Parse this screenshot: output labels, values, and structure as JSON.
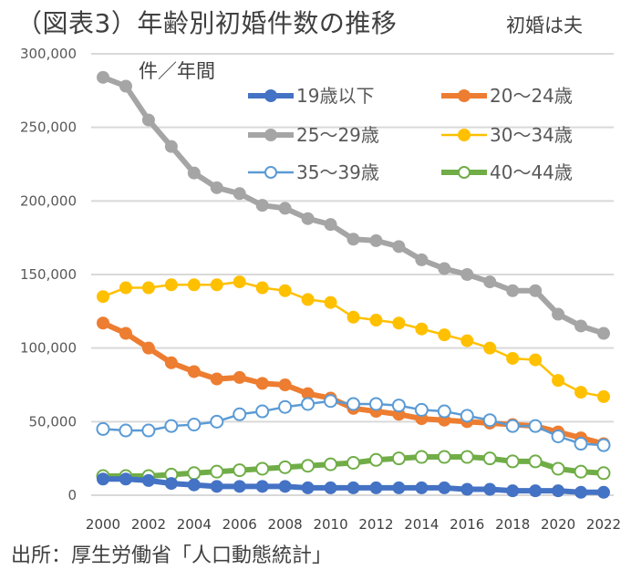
{
  "header": {
    "title": "（図表3）年齢別初婚件数の推移",
    "subtitle": "初婚は夫"
  },
  "footer": {
    "source": "出所：厚生労働省「人口動態統計」"
  },
  "chart_data": {
    "type": "line",
    "title": "（図表3）年齢別初婚件数の推移",
    "subtitle": "初婚は夫",
    "ylabel": "件／年間",
    "xlabel": "",
    "ylim": [
      0,
      300000
    ],
    "yticks": [
      0,
      50000,
      100000,
      150000,
      200000,
      250000,
      300000
    ],
    "ytick_labels": [
      "0",
      "50,000",
      "100,000",
      "150,000",
      "200,000",
      "250,000",
      "300,000"
    ],
    "x": [
      2000,
      2001,
      2002,
      2003,
      2004,
      2005,
      2006,
      2007,
      2008,
      2009,
      2010,
      2011,
      2012,
      2013,
      2014,
      2015,
      2016,
      2017,
      2018,
      2019,
      2020,
      2021,
      2022
    ],
    "xtick_labels": [
      "2000",
      "2002",
      "2004",
      "2006",
      "2008",
      "2010",
      "2012",
      "2014",
      "2016",
      "2018",
      "2020",
      "2022"
    ],
    "grid": "horizontal",
    "legend_position": "top-right",
    "series": [
      {
        "name": "19歳以下",
        "color": "#4472C4",
        "marker": "filled",
        "weight": "thick",
        "values": [
          11000,
          11000,
          10000,
          8000,
          7000,
          6000,
          6000,
          6000,
          6000,
          5000,
          5000,
          5000,
          5000,
          5000,
          5000,
          5000,
          4000,
          4000,
          3000,
          3000,
          3000,
          2000,
          2000
        ]
      },
      {
        "name": "20〜24歳",
        "color": "#ED7D31",
        "marker": "filled",
        "weight": "thick",
        "values": [
          117000,
          110000,
          100000,
          90000,
          84000,
          79000,
          80000,
          76000,
          75000,
          69000,
          66000,
          59000,
          57000,
          55000,
          52000,
          51000,
          50000,
          49000,
          48000,
          47000,
          43000,
          39000,
          35000
        ]
      },
      {
        "name": "25〜29歳",
        "color": "#A5A5A5",
        "marker": "filled",
        "weight": "thick",
        "values": [
          284000,
          278000,
          255000,
          237000,
          219000,
          209000,
          205000,
          197000,
          195000,
          188000,
          184000,
          174000,
          173000,
          169000,
          160000,
          154000,
          150000,
          145000,
          139000,
          139000,
          123000,
          115000,
          110000
        ]
      },
      {
        "name": "30〜34歳",
        "color": "#FFC000",
        "marker": "filled",
        "weight": "thin",
        "values": [
          135000,
          141000,
          141000,
          143000,
          143000,
          143000,
          145000,
          141000,
          139000,
          133000,
          131000,
          121000,
          119000,
          117000,
          113000,
          109000,
          105000,
          100000,
          93000,
          92000,
          78000,
          70000,
          67000
        ]
      },
      {
        "name": "35〜39歳",
        "color": "#5B9BD5",
        "marker": "hollow",
        "weight": "thin",
        "values": [
          45000,
          44000,
          44000,
          47000,
          48000,
          50000,
          55000,
          57000,
          60000,
          62000,
          64000,
          62000,
          62000,
          61000,
          58000,
          57000,
          54000,
          51000,
          47000,
          47000,
          40000,
          35000,
          34000
        ]
      },
      {
        "name": "40〜44歳",
        "color": "#70AD47",
        "marker": "hollow",
        "weight": "thick",
        "values": [
          13000,
          13000,
          13000,
          14000,
          15000,
          16000,
          17000,
          18000,
          19000,
          20000,
          21000,
          22000,
          24000,
          25000,
          26000,
          26000,
          26000,
          25000,
          23000,
          23000,
          18000,
          16000,
          15000
        ]
      }
    ]
  }
}
